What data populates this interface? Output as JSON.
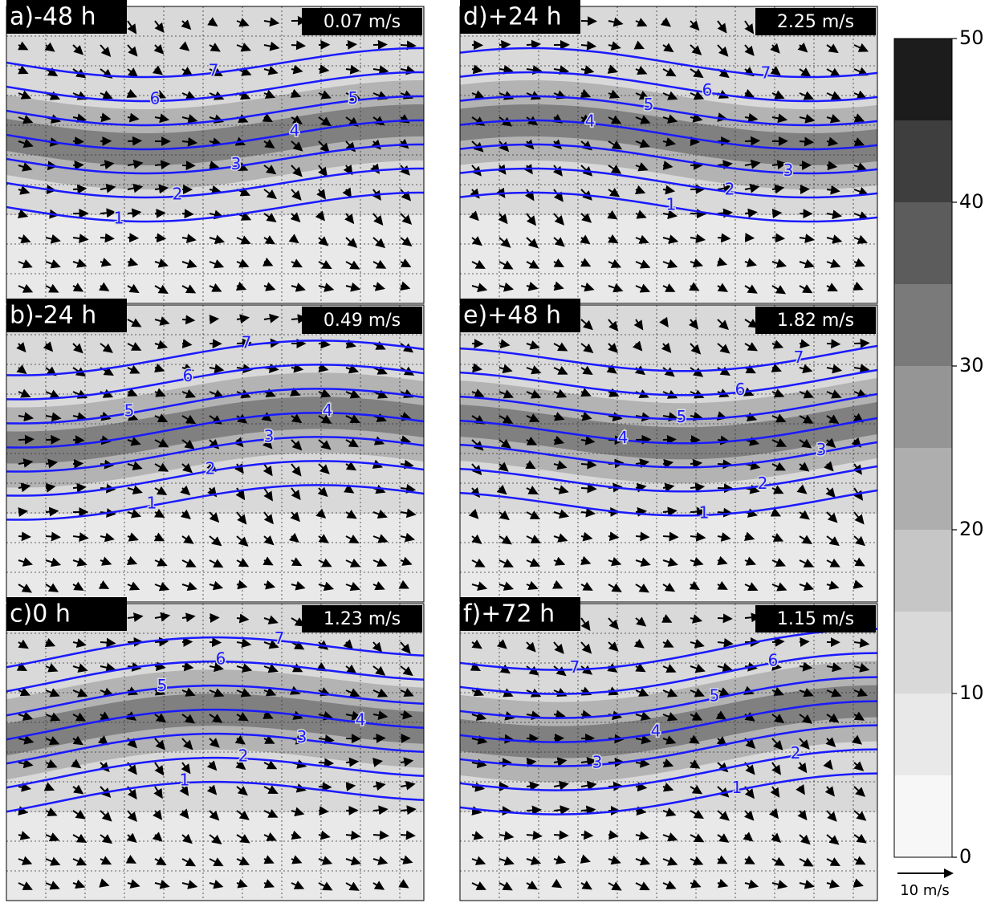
{
  "panels": [
    {
      "label": "a)-48 h",
      "speed": "0.07 m/s"
    },
    {
      "label": "b)-24 h",
      "speed": "0.49 m/s"
    },
    {
      "label": "c)0 h",
      "speed": "1.23 m/s"
    },
    {
      "label": "d)+24 h",
      "speed": "2.25 m/s"
    },
    {
      "label": "e)+48 h",
      "speed": "1.82 m/s"
    },
    {
      "label": "f)+72 h",
      "speed": "1.15 m/s"
    }
  ],
  "contour_levels": [
    1,
    2,
    3,
    4,
    5,
    6,
    7
  ],
  "colorbar": {
    "ylim": [
      0,
      50
    ],
    "yticks": [
      0,
      10,
      20,
      30,
      40,
      50
    ],
    "bins": [
      0,
      5,
      10,
      15,
      20,
      25,
      30,
      35,
      40,
      45,
      50
    ],
    "colors": [
      "#f7f7f7",
      "#e9e9e9",
      "#d9d9d9",
      "#c6c6c6",
      "#aeaeae",
      "#959595",
      "#7a7a7a",
      "#5c5c5c",
      "#3e3e3e",
      "#1c1c1c"
    ]
  },
  "reference_arrow": {
    "label": "10 m/s"
  }
}
